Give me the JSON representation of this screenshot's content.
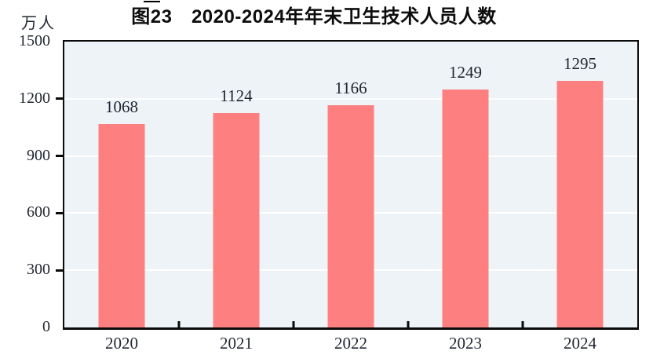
{
  "figure": {
    "title": "图23　2020-2024年年末卫生技术人员人数",
    "unit_label": "万人"
  },
  "chart_data": {
    "type": "bar",
    "title": "图23　2020-2024年年末卫生技术人员人数",
    "categories": [
      "2020",
      "2021",
      "2022",
      "2023",
      "2024"
    ],
    "values": [
      1068,
      1124,
      1166,
      1249,
      1295
    ],
    "xlabel": "",
    "ylabel": "万人",
    "ylim": [
      0,
      1500
    ],
    "yticks": [
      0,
      300,
      600,
      900,
      1200,
      1500
    ],
    "grid": true,
    "legend": "none",
    "bar_color": "#fe7f7f",
    "plot_background": "#edf3f7",
    "gridline_color": "#ffffff",
    "frame_color": "#0a0a0a"
  }
}
